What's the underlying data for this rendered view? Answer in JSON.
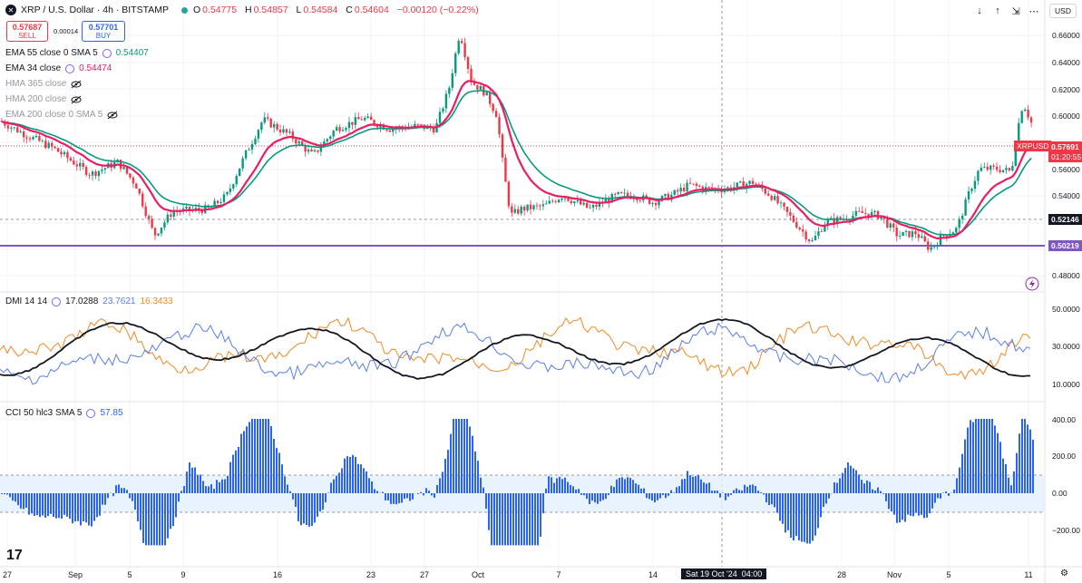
{
  "header": {
    "symbol": "XRP / U.S. Dollar · 4h · BITSTAMP",
    "ohlc": [
      {
        "label": "O",
        "value": "0.54775"
      },
      {
        "label": "H",
        "value": "0.54857"
      },
      {
        "label": "L",
        "value": "0.54584"
      },
      {
        "label": "C",
        "value": "0.54604"
      }
    ],
    "change": "−0.00120 (−0.22%)",
    "sell_price": "0.57687",
    "sell_label": "SELL",
    "spread": "0.00014",
    "buy_price": "0.57701",
    "buy_label": "BUY",
    "currency": "USD"
  },
  "indicators": [
    {
      "name": "EMA 55 close 0 SMA 5",
      "value": "0.54407",
      "color": "#089981",
      "hidden": false
    },
    {
      "name": "EMA 34 close",
      "value": "0.54474",
      "color": "#e91e63",
      "hidden": false
    },
    {
      "name": "HMA 365 close",
      "value": "",
      "hidden": true
    },
    {
      "name": "HMA 200 close",
      "value": "",
      "hidden": true
    },
    {
      "name": "EMA 200 close 0 SMA 5",
      "value": "",
      "hidden": true
    }
  ],
  "price_axis": [
    "0.66000",
    "0.64000",
    "0.62000",
    "0.60000",
    "0.56000",
    "0.54000",
    "0.48000"
  ],
  "price_tags": {
    "symbol": "XRPUSD",
    "last": "0.57691",
    "countdown": "01:20:55",
    "level1": "0.52146",
    "level2": "0.50219"
  },
  "dmi": {
    "name": "DMI 14 14",
    "values": [
      "17.0288",
      "23.7621",
      "16.3433"
    ],
    "axis": [
      "50.0000",
      "30.0000",
      "10.0000"
    ]
  },
  "cci": {
    "name": "CCI 50 hlc3 SMA 5",
    "value": "57.85",
    "axis": [
      "400.00",
      "200.00",
      "0.00",
      "−200.00"
    ]
  },
  "time_axis": [
    "27",
    "Sep",
    "5",
    "9",
    "16",
    "23",
    "27",
    "Oct",
    "7",
    "14",
    "28",
    "Nov",
    "5",
    "11"
  ],
  "crosshair_time": "Sat 19 Oct '24  04:00",
  "colors": {
    "up": "#089981",
    "down": "#f23645",
    "ema55": "#089981",
    "ema34": "#e91e63",
    "support": "#7e57c2",
    "dmi_adx": "#131722",
    "dmi_plus": "#5b7fe8",
    "dmi_minus": "#f08a24",
    "cci": "#2962ff"
  }
}
